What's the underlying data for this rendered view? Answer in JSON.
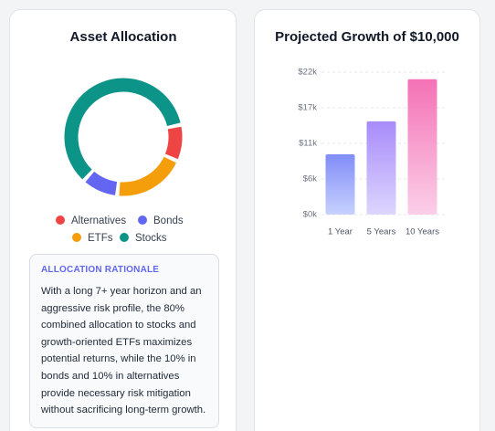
{
  "chart_data": [
    {
      "type": "donut",
      "title": "Asset Allocation",
      "categories": [
        "Alternatives",
        "ETFs",
        "Bonds",
        "Stocks"
      ],
      "values": [
        10,
        20,
        10,
        60
      ],
      "colors": [
        "#ef4444",
        "#f59e0b",
        "#6366f1",
        "#0d9488"
      ]
    },
    {
      "type": "bar",
      "title": "Projected Growth of $10,000",
      "categories": [
        "1 Year",
        "5 Years",
        "10 Years"
      ],
      "values": [
        9300,
        14400,
        20900
      ],
      "colors": [
        "#818cf8",
        "#a78bfa",
        "#f472b6"
      ],
      "gradient_to": [
        "#c7d2fe",
        "#ddd6fe",
        "#fbcfe8"
      ],
      "ylim": [
        0,
        22000
      ],
      "yticks": [
        {
          "value": 0,
          "label": "$0k"
        },
        {
          "value": 5500,
          "label": "$6k"
        },
        {
          "value": 11000,
          "label": "$11k"
        },
        {
          "value": 16500,
          "label": "$17k"
        },
        {
          "value": 22000,
          "label": "$22k"
        }
      ],
      "grid": true
    }
  ],
  "rationale": {
    "heading": "ALLOCATION RATIONALE",
    "text": "With a long 7+ year horizon and an aggressive risk profile, the 80% combined allocation to stocks and growth-oriented ETFs maximizes potential returns, while the 10% in bonds and 10% in alternatives provide necessary risk mitigation without sacrificing long-term growth."
  }
}
